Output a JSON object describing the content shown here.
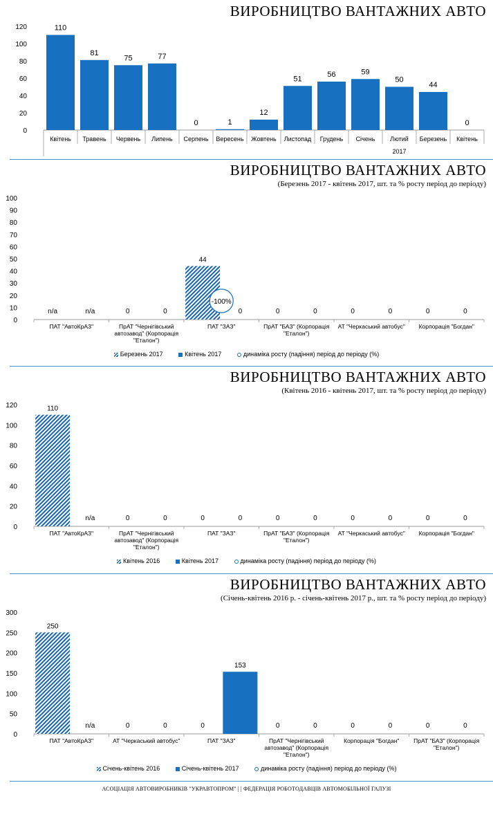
{
  "chart_data": [
    {
      "type": "bar",
      "title": "ВИРОБНИЦТВО ВАНТАЖНИХ АВТО",
      "categories": [
        "Квітень",
        "Травень",
        "Червень",
        "Липень",
        "Серпень",
        "Вересень",
        "Жовтень",
        "Листопад",
        "Грудень",
        "Січень",
        "Лютий",
        "Березень",
        "Квітень"
      ],
      "values": [
        110,
        81,
        75,
        77,
        0,
        1,
        12,
        51,
        56,
        59,
        50,
        44,
        0
      ],
      "year_label": "2017",
      "yticks": [
        "0",
        "20",
        "40",
        "60",
        "80",
        "100",
        "120"
      ],
      "ylim": [
        0,
        120
      ]
    },
    {
      "type": "bar",
      "title": "ВИРОБНИЦТВО ВАНТАЖНИХ АВТО",
      "subtitle": "(Березень 2017 - квітень 2017, шт. та % росту період до періоду)",
      "categories": [
        "ПАТ \"АвтоКрАЗ\"",
        "ПрАТ \"Чернігівський автозавод\" (Корпорація \"Еталон\")",
        "ПАТ \"ЗАЗ\"",
        "ПрАТ \"БАЗ\" (Корпорація \"Еталон\")",
        "АТ \"Черкаський автобус\"",
        "Корпорація \"Богдан\""
      ],
      "series": [
        {
          "name": "Березень 2017",
          "values": [
            null,
            0,
            44,
            0,
            0,
            0
          ],
          "labels": [
            "n/a",
            "0",
            "44",
            "0",
            "0",
            "0"
          ]
        },
        {
          "name": "Квітень 2017",
          "values": [
            null,
            0,
            0,
            0,
            0,
            0
          ],
          "labels": [
            "n/a",
            "0",
            "0",
            "0",
            "0",
            "0"
          ]
        }
      ],
      "growth": [
        {
          "category_index": 2,
          "label": "-100%"
        }
      ],
      "growth_legend": "динаміка росту (падіння) період до періоду (%)",
      "yticks": [
        "0",
        "10",
        "20",
        "30",
        "40",
        "50",
        "60",
        "70",
        "80",
        "90",
        "100"
      ],
      "ylim": [
        0,
        100
      ]
    },
    {
      "type": "bar",
      "title": "ВИРОБНИЦТВО ВАНТАЖНИХ АВТО",
      "subtitle": "(Квітень 2016 - квітень 2017, шт. та % росту період до періоду)",
      "categories": [
        "ПАТ \"АвтоКрАЗ\"",
        "ПрАТ \"Чернігівський автозавод\" (Корпорація \"Еталон\")",
        "ПАТ \"ЗАЗ\"",
        "ПрАТ \"БАЗ\" (Корпорація \"Еталон\")",
        "АТ \"Черкаський автобус\"",
        "Корпорація \"Богдан\""
      ],
      "series": [
        {
          "name": "Квітень 2016",
          "values": [
            110,
            0,
            0,
            0,
            0,
            0
          ],
          "labels": [
            "110",
            "0",
            "0",
            "0",
            "0",
            "0"
          ]
        },
        {
          "name": "Квітень 2017",
          "values": [
            null,
            0,
            0,
            0,
            0,
            0
          ],
          "labels": [
            "n/a",
            "0",
            "0",
            "0",
            "0",
            "0"
          ]
        }
      ],
      "growth": [],
      "growth_legend": "динаміка росту (падіння) період до періоду (%)",
      "yticks": [
        "0",
        "20",
        "40",
        "60",
        "80",
        "100",
        "120"
      ],
      "ylim": [
        0,
        120
      ]
    },
    {
      "type": "bar",
      "title": "ВИРОБНИЦТВО ВАНТАЖНИХ АВТО",
      "subtitle": "(Січень-квітень 2016 р. - січень-квітень 2017 р., шт. та % росту період до періоду)",
      "categories": [
        "ПАТ \"АвтоКрАЗ\"",
        "АТ \"Черкаський автобус\"",
        "ПАТ \"ЗАЗ\"",
        "ПрАТ \"Чернігівський автозавод\" (Корпорація \"Еталон\")",
        "Корпорація \"Богдан\"",
        "ПрАТ \"БАЗ\" (Корпорація \"Еталон\")"
      ],
      "series": [
        {
          "name": "Січень-квітень 2016",
          "values": [
            250,
            0,
            0,
            0,
            0,
            0
          ],
          "labels": [
            "250",
            "0",
            "0",
            "0",
            "0",
            "0"
          ]
        },
        {
          "name": "Січень-квітень 2017",
          "values": [
            null,
            0,
            153,
            0,
            0,
            0
          ],
          "labels": [
            "n/a",
            "0",
            "153",
            "0",
            "0",
            "0"
          ]
        }
      ],
      "growth": [],
      "growth_legend": "динаміка росту (падіння) період до періоду (%)",
      "yticks": [
        "0",
        "50",
        "100",
        "150",
        "200",
        "250",
        "300"
      ],
      "ylim": [
        0,
        300
      ]
    }
  ],
  "footer": "АСОЦІАЦІЯ АВТОВИРОБНИКІВ \"УКРАВТОПРОМ\" | | ФЕДЕРАЦІЯ РОБОТОДАВЦІВ АВТОМОБІЛЬНОЇ ГАЛУЗІ",
  "colors": {
    "bar": "#1770c0",
    "hatch": "#1565b4",
    "rule": "#4a90c8"
  }
}
